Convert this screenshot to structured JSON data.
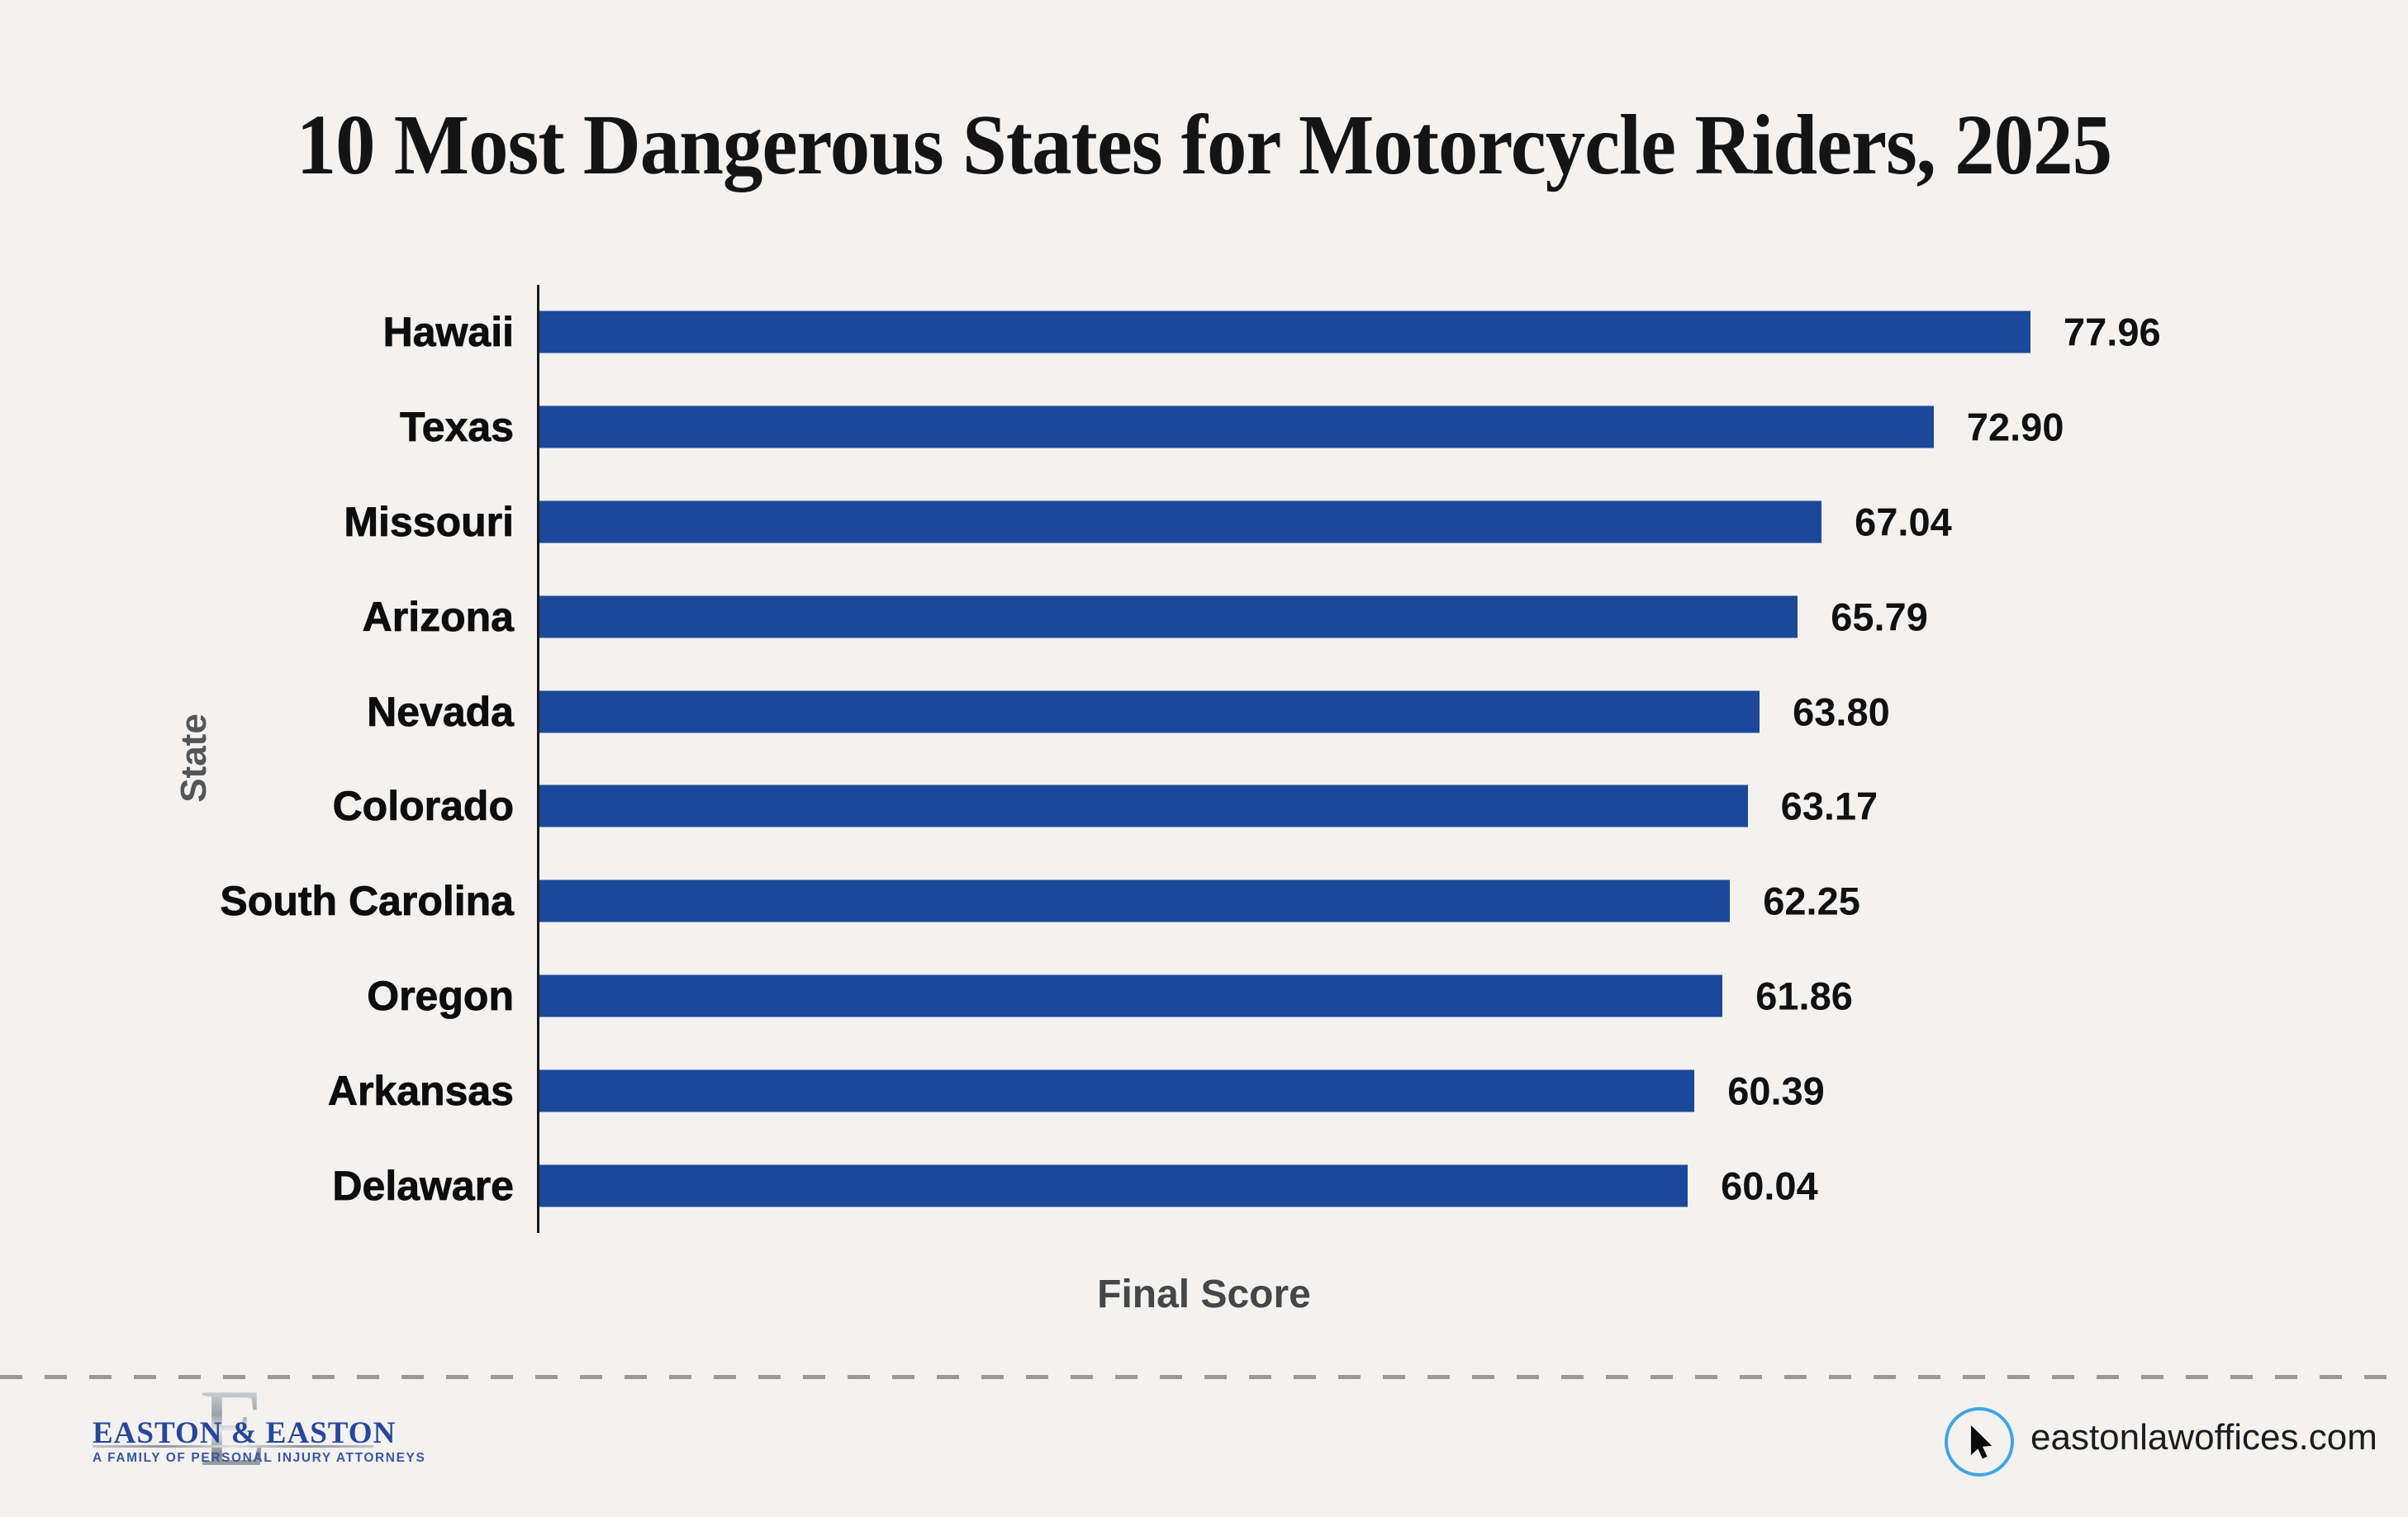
{
  "title": "10 Most Dangerous States for Motorcycle Riders, 2025",
  "chart_data": {
    "type": "bar",
    "orientation": "horizontal",
    "title": "10 Most Dangerous States for Motorcycle Riders, 2025",
    "xlabel": "Final Score",
    "ylabel": "State",
    "categories": [
      "Hawaii",
      "Texas",
      "Missouri",
      "Arizona",
      "Nevada",
      "Colorado",
      "South Carolina",
      "Oregon",
      "Arkansas",
      "Delaware"
    ],
    "values": [
      77.96,
      72.9,
      67.04,
      65.79,
      63.8,
      63.17,
      62.25,
      61.86,
      60.39,
      60.04
    ],
    "value_label_decimals": 2,
    "bar_color": "#1c4899",
    "grid": false,
    "x_ticks_visible": false,
    "legend_position": "none"
  },
  "footer": {
    "logo": {
      "monogram": "E",
      "name": "EASTON & EASTON",
      "tagline": "A FAMILY OF PERSONAL INJURY ATTORNEYS",
      "brand_blue": "#26469b",
      "silver": "#9aa0a7"
    },
    "website": "eastonlawoffices.com",
    "icon": "mouse-cursor-icon",
    "icon_circle_color": "#3ea5e3"
  },
  "colors": {
    "background": "#f3f2f1",
    "bar": "#1c4899",
    "axis": "#1a1a1a",
    "divider": "#989898"
  }
}
